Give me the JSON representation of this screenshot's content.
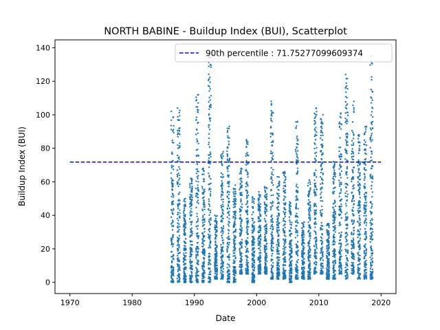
{
  "chart_data": {
    "type": "scatter",
    "title": "NORTH BABINE - Buildup Index (BUI), Scatterplot",
    "xlabel": "Date",
    "ylabel": "Buildup Index (BUI)",
    "xlim": [
      1967.6,
      2022.4
    ],
    "ylim": [
      -6.7,
      144.7
    ],
    "x_ticks": [
      "1970",
      "1980",
      "1990",
      "2000",
      "2010",
      "2020"
    ],
    "y_ticks": [
      "0",
      "20",
      "40",
      "60",
      "80",
      "100",
      "120",
      "140"
    ],
    "grid": false,
    "legend": {
      "placement": "top-right",
      "entries": [
        "90th percentile : 71.75277099609374"
      ]
    },
    "colors": {
      "points": "#1f77b4",
      "percentile_line": "#0000ff"
    },
    "reference_line": {
      "name": "90th percentile : 71.75277099609374",
      "y": 71.75277099609374,
      "x_range": [
        1970,
        2020
      ],
      "style": "dashed"
    },
    "season_bands": [
      {
        "year": 1986.5,
        "min": 0,
        "max": 102
      },
      {
        "year": 1987.5,
        "min": 0,
        "max": 104
      },
      {
        "year": 1988.5,
        "min": 0,
        "max": 50
      },
      {
        "year": 1989.5,
        "min": 0,
        "max": 62
      },
      {
        "year": 1990.5,
        "min": 0,
        "max": 112
      },
      {
        "year": 1991.5,
        "min": 0,
        "max": 68
      },
      {
        "year": 1992.5,
        "min": 0,
        "max": 135
      },
      {
        "year": 1993.5,
        "min": 2,
        "max": 40
      },
      {
        "year": 1994.5,
        "min": 2,
        "max": 78
      },
      {
        "year": 1995.5,
        "min": 0,
        "max": 93
      },
      {
        "year": 1996.5,
        "min": 0,
        "max": 58
      },
      {
        "year": 1997.5,
        "min": 5,
        "max": 68
      },
      {
        "year": 1998.5,
        "min": 5,
        "max": 85
      },
      {
        "year": 1999.5,
        "min": 0,
        "max": 51
      },
      {
        "year": 2000.5,
        "min": 5,
        "max": 54
      },
      {
        "year": 2001.5,
        "min": 5,
        "max": 57
      },
      {
        "year": 2002.5,
        "min": 2,
        "max": 108
      },
      {
        "year": 2003.5,
        "min": 2,
        "max": 63
      },
      {
        "year": 2004.5,
        "min": 2,
        "max": 66
      },
      {
        "year": 2005.5,
        "min": 0,
        "max": 48
      },
      {
        "year": 2006.5,
        "min": 2,
        "max": 96
      },
      {
        "year": 2007.5,
        "min": 2,
        "max": 36
      },
      {
        "year": 2008.5,
        "min": 2,
        "max": 61
      },
      {
        "year": 2009.5,
        "min": 5,
        "max": 104
      },
      {
        "year": 2010.5,
        "min": 5,
        "max": 100
      },
      {
        "year": 2011.5,
        "min": 2,
        "max": 35
      },
      {
        "year": 2012.5,
        "min": 2,
        "max": 72
      },
      {
        "year": 2013.5,
        "min": 5,
        "max": 101
      },
      {
        "year": 2014.5,
        "min": 2,
        "max": 124
      },
      {
        "year": 2015.5,
        "min": 5,
        "max": 108
      },
      {
        "year": 2016.5,
        "min": 2,
        "max": 88
      },
      {
        "year": 2017.5,
        "min": 2,
        "max": 93
      },
      {
        "year": 2018.5,
        "min": 2,
        "max": 135
      }
    ]
  }
}
